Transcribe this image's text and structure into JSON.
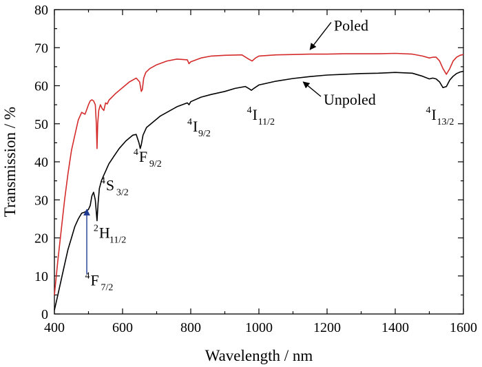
{
  "chart_data": {
    "type": "line",
    "xlabel": "Wavelength / nm",
    "ylabel": "Transmission / %",
    "xlim": [
      400,
      1600
    ],
    "ylim": [
      0,
      80
    ],
    "xticks": [
      400,
      600,
      800,
      1000,
      1200,
      1400,
      1600
    ],
    "yticks": [
      0,
      10,
      20,
      30,
      40,
      50,
      60,
      70,
      80
    ],
    "grid": false,
    "series": [
      {
        "name": "Poled",
        "color": "#d42a2a",
        "x": [
          400,
          410,
          420,
          430,
          440,
          450,
          460,
          470,
          480,
          490,
          500,
          505,
          510,
          515,
          520,
          523,
          525,
          527,
          530,
          535,
          540,
          545,
          550,
          555,
          560,
          580,
          600,
          620,
          640,
          650,
          655,
          658,
          662,
          668,
          680,
          700,
          730,
          760,
          790,
          795,
          800,
          830,
          860,
          900,
          950,
          970,
          980,
          990,
          1000,
          1050,
          1100,
          1150,
          1200,
          1250,
          1300,
          1350,
          1400,
          1450,
          1480,
          1500,
          1510,
          1520,
          1530,
          1540,
          1550,
          1560,
          1570,
          1580,
          1590,
          1600
        ],
        "y": [
          5,
          14,
          22,
          30,
          37,
          43,
          47,
          51,
          53,
          52.5,
          55,
          56,
          56.3,
          56,
          55,
          50,
          43.5,
          50,
          53.5,
          55,
          54,
          53.5,
          55.5,
          55.2,
          56.2,
          58,
          59.5,
          61,
          62,
          61,
          58.5,
          59,
          62,
          63.5,
          64.5,
          65.5,
          66.5,
          67,
          66.8,
          65.8,
          66.3,
          67.3,
          67.8,
          68,
          68.1,
          67,
          66.5,
          67.3,
          67.8,
          68.1,
          68.2,
          68.3,
          68.3,
          68.4,
          68.4,
          68.4,
          68.5,
          68.3,
          67.8,
          67.3,
          67.5,
          67.5,
          66.5,
          64.5,
          63,
          64.5,
          66.5,
          67.5,
          68,
          68.2
        ]
      },
      {
        "name": "Unpoled",
        "color": "#000000",
        "x": [
          400,
          410,
          420,
          430,
          440,
          450,
          460,
          470,
          480,
          490,
          500,
          505,
          510,
          515,
          520,
          525,
          528,
          532,
          538,
          545,
          550,
          555,
          560,
          575,
          590,
          610,
          630,
          640,
          648,
          652,
          655,
          660,
          670,
          690,
          710,
          730,
          760,
          790,
          795,
          800,
          830,
          860,
          900,
          930,
          960,
          970,
          978,
          985,
          1000,
          1050,
          1100,
          1150,
          1200,
          1250,
          1300,
          1350,
          1400,
          1450,
          1480,
          1500,
          1510,
          1520,
          1530,
          1540,
          1550,
          1560,
          1570,
          1580,
          1590,
          1600
        ],
        "y": [
          1,
          5,
          9,
          13,
          17,
          20,
          23,
          25,
          26.5,
          26.8,
          27.5,
          28.5,
          31,
          32,
          30,
          24.5,
          29,
          33,
          35,
          36.5,
          37.5,
          38.5,
          39.5,
          41.5,
          43.5,
          45.5,
          47,
          47.2,
          45,
          43.5,
          44.5,
          47,
          49,
          50.5,
          52,
          53,
          54.5,
          55.5,
          55,
          55.8,
          57,
          57.7,
          58.5,
          59.3,
          59.8,
          59.3,
          58.8,
          59.3,
          60.2,
          61.2,
          61.9,
          62.4,
          62.8,
          63,
          63.2,
          63.3,
          63.5,
          63.3,
          62.5,
          61.8,
          62,
          61.8,
          61,
          59.5,
          59.8,
          61.5,
          62.5,
          63.2,
          63.6,
          63.8
        ]
      }
    ],
    "annotations": [
      {
        "text": "Poled",
        "pos": [
          1220,
          74.5
        ],
        "arrow_to": [
          1150,
          69.5
        ]
      },
      {
        "text": "Unpoled",
        "pos": [
          1190,
          55
        ],
        "arrow_to": [
          1130,
          61
        ]
      },
      {
        "sup": "4",
        "main": "F",
        "sub": "7/2",
        "pos": [
          490,
          7.5
        ],
        "arrow_from": [
          495,
          10.5
        ],
        "arrow_to": [
          495,
          27.5
        ],
        "arrow_color": "#1f3a93"
      },
      {
        "sup": "2",
        "main": "H",
        "sub": "11/2",
        "pos": [
          515,
          20
        ]
      },
      {
        "sup": "4",
        "main": "S",
        "sub": "3/2",
        "pos": [
          535,
          32.5
        ]
      },
      {
        "sup": "4",
        "main": "F",
        "sub": "9/2",
        "pos": [
          632,
          40
        ]
      },
      {
        "sup": "4",
        "main": "I",
        "sub": "9/2",
        "pos": [
          790,
          48
        ]
      },
      {
        "sup": "4",
        "main": "I",
        "sub": "11/2",
        "pos": [
          965,
          51
        ]
      },
      {
        "sup": "4",
        "main": "I",
        "sub": "13/2",
        "pos": [
          1490,
          51
        ]
      }
    ]
  }
}
